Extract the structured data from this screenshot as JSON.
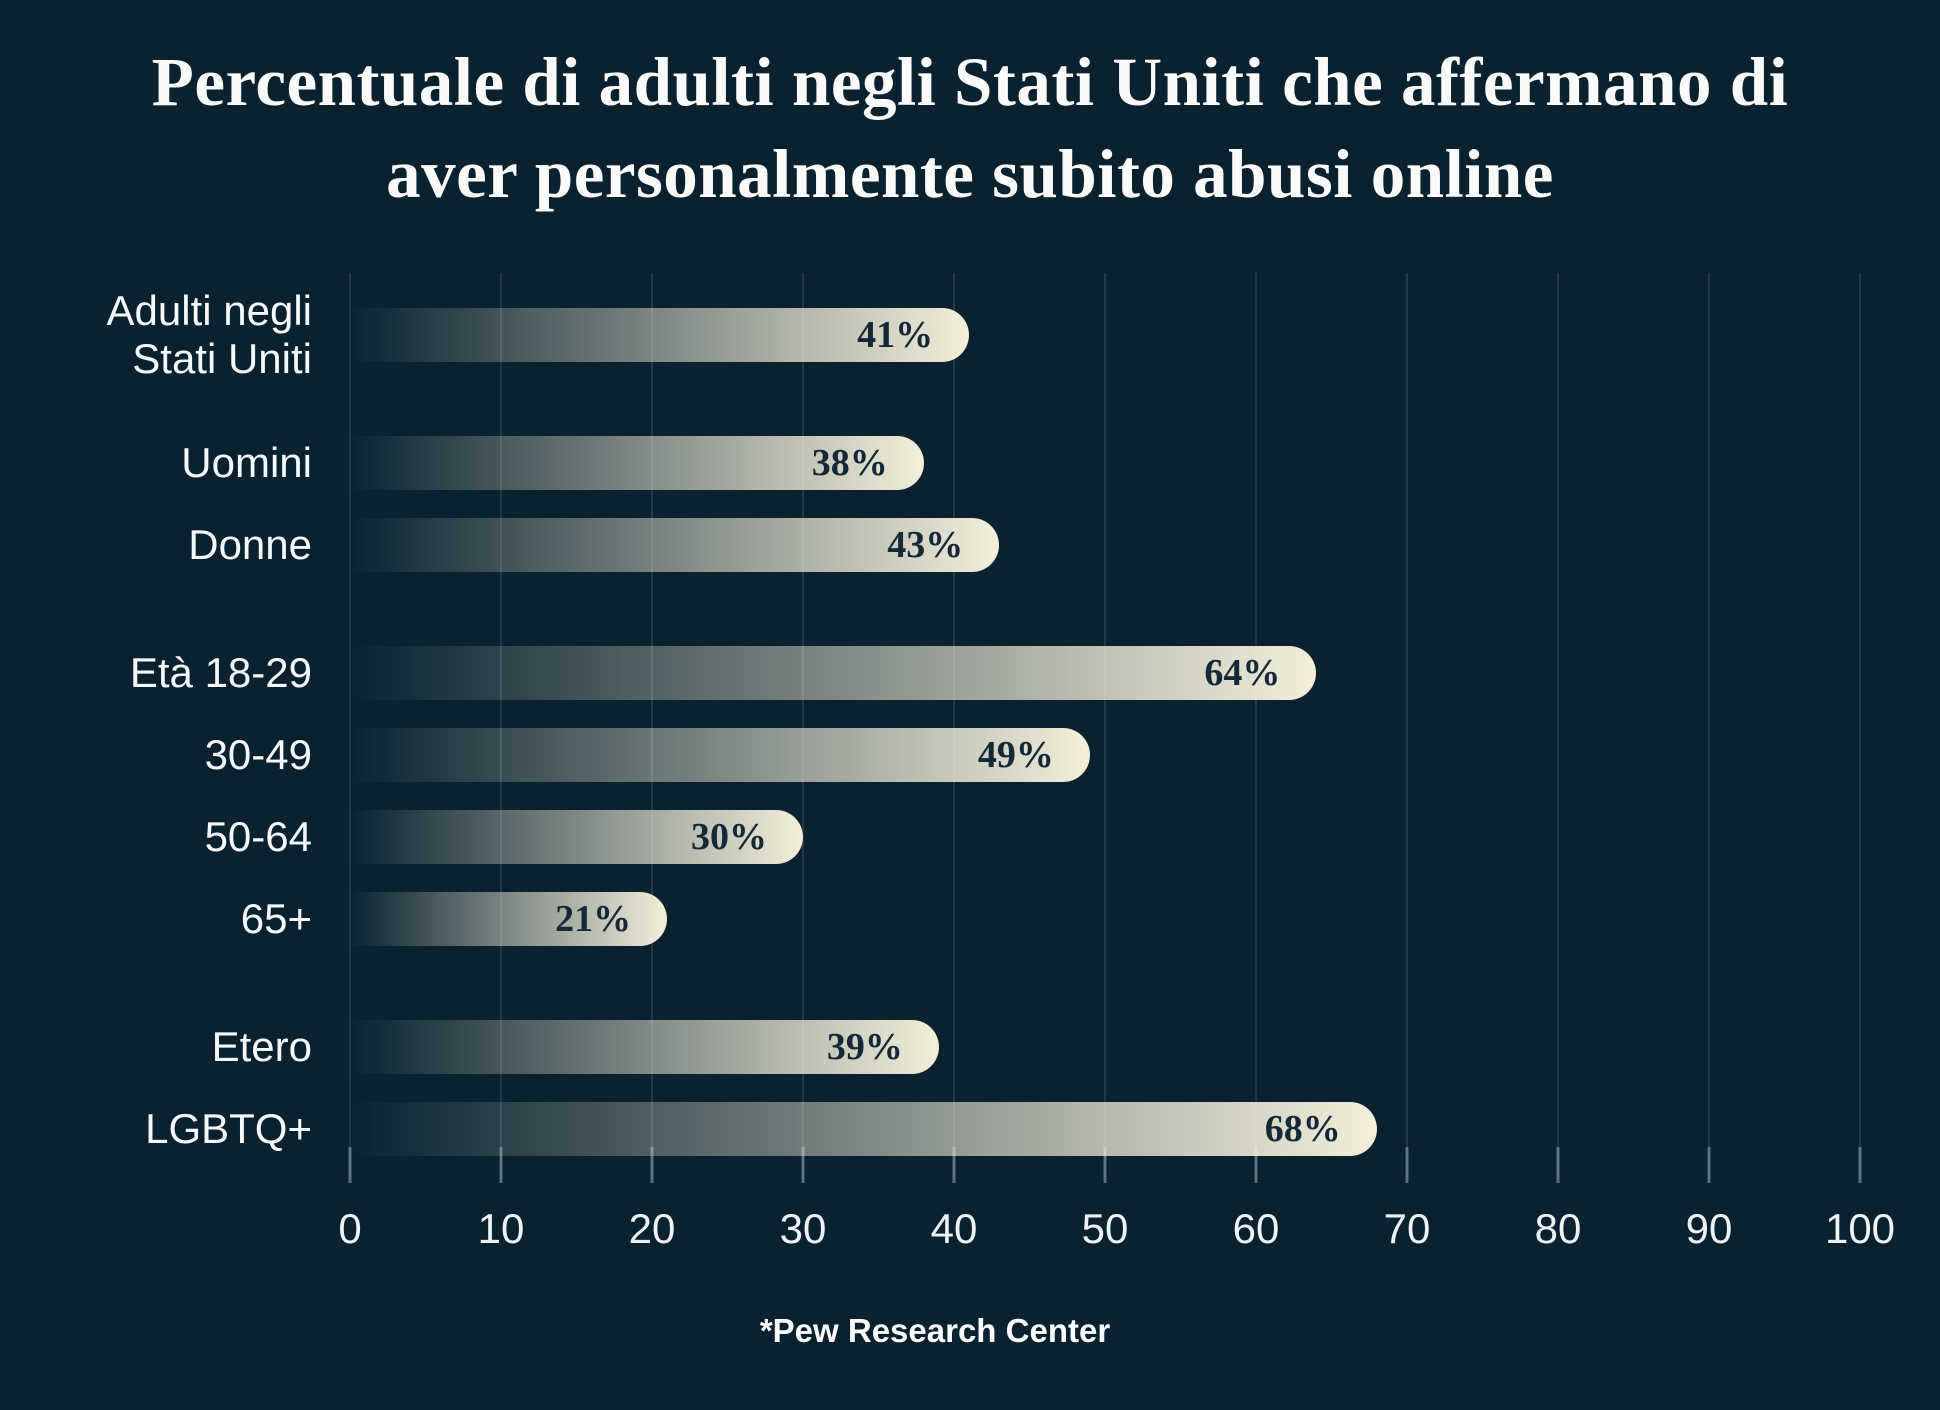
{
  "title": {
    "line1": "Percentuale di adulti negli Stati Uniti che affermano di",
    "line2": "aver personalmente subito abusi online"
  },
  "source": {
    "label": "*Pew Research Center"
  },
  "chart_data": {
    "type": "bar",
    "orientation": "horizontal",
    "title": "Percentuale di adulti negli Stati Uniti che affermano di aver personalmente subito abusi online",
    "xlabel": "",
    "ylabel": "",
    "unit": "%",
    "xlim": [
      0,
      100
    ],
    "x_ticks": [
      0,
      10,
      20,
      30,
      40,
      50,
      60,
      70,
      80,
      90,
      100
    ],
    "grid": true,
    "legend": false,
    "categories": [
      "Adulti negli Stati Uniti",
      "Uomini",
      "Donne",
      "Età 18-29",
      "30-49",
      "50-64",
      "65+",
      "Etero",
      "LGBTQ+"
    ],
    "values": [
      41,
      38,
      43,
      64,
      49,
      30,
      21,
      39,
      68
    ],
    "value_labels": [
      "41%",
      "38%",
      "43%",
      "64%",
      "49%",
      "30%",
      "21%",
      "39%",
      "68%"
    ],
    "groups": [
      {
        "rows": [
          {
            "label": "Adulti negli Stati Uniti",
            "value": 41,
            "value_label": "41%"
          }
        ]
      },
      {
        "rows": [
          {
            "label": "Uomini",
            "value": 38,
            "value_label": "38%"
          },
          {
            "label": "Donne",
            "value": 43,
            "value_label": "43%"
          }
        ]
      },
      {
        "rows": [
          {
            "label": "Età 18-29",
            "value": 64,
            "value_label": "64%"
          },
          {
            "label": "30-49",
            "value": 49,
            "value_label": "49%"
          },
          {
            "label": "50-64",
            "value": 30,
            "value_label": "30%"
          },
          {
            "label": "65+",
            "value": 21,
            "value_label": "21%"
          }
        ]
      },
      {
        "rows": [
          {
            "label": "Etero",
            "value": 39,
            "value_label": "39%"
          },
          {
            "label": "LGBTQ+",
            "value": 68,
            "value_label": "68%"
          }
        ]
      }
    ],
    "colors": {
      "background": "#0a2230",
      "bar_fill": "#f3efda",
      "bar_value_text": "#13293a",
      "category_text": "#f5f8f9",
      "axis_text": "#eef2f4",
      "gridline": "rgba(155,177,192,0.17)",
      "tick": "rgba(155,177,192,0.5)"
    }
  }
}
